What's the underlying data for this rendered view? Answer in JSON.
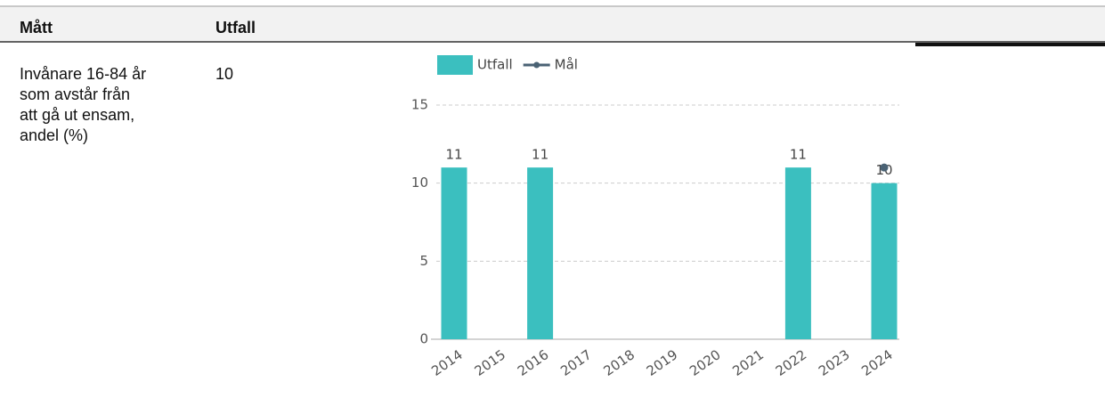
{
  "table": {
    "header": [
      "Mått",
      "Utfall"
    ],
    "rows": [
      [
        [
          "Invånare 16-84 år",
          "som avstår från",
          "att gå ut ensam,",
          "andel (%)"
        ],
        "10"
      ]
    ]
  },
  "chart_data": {
    "type": "bar",
    "categories": [
      "2014",
      "2015",
      "2016",
      "2017",
      "2018",
      "2019",
      "2020",
      "2021",
      "2022",
      "2023",
      "2024"
    ],
    "series": [
      {
        "name": "Utfall",
        "color": "#3bbfbf",
        "values": [
          11,
          null,
          11,
          null,
          null,
          null,
          null,
          null,
          11,
          null,
          10
        ]
      },
      {
        "name": "Mål",
        "type": "line",
        "color": "#4a6274",
        "values": [
          null,
          null,
          null,
          null,
          null,
          null,
          null,
          null,
          null,
          null,
          11
        ]
      }
    ],
    "ylim": [
      0,
      15
    ],
    "yticks": [
      0,
      5,
      10,
      15
    ],
    "grid": true,
    "legend": "top"
  }
}
